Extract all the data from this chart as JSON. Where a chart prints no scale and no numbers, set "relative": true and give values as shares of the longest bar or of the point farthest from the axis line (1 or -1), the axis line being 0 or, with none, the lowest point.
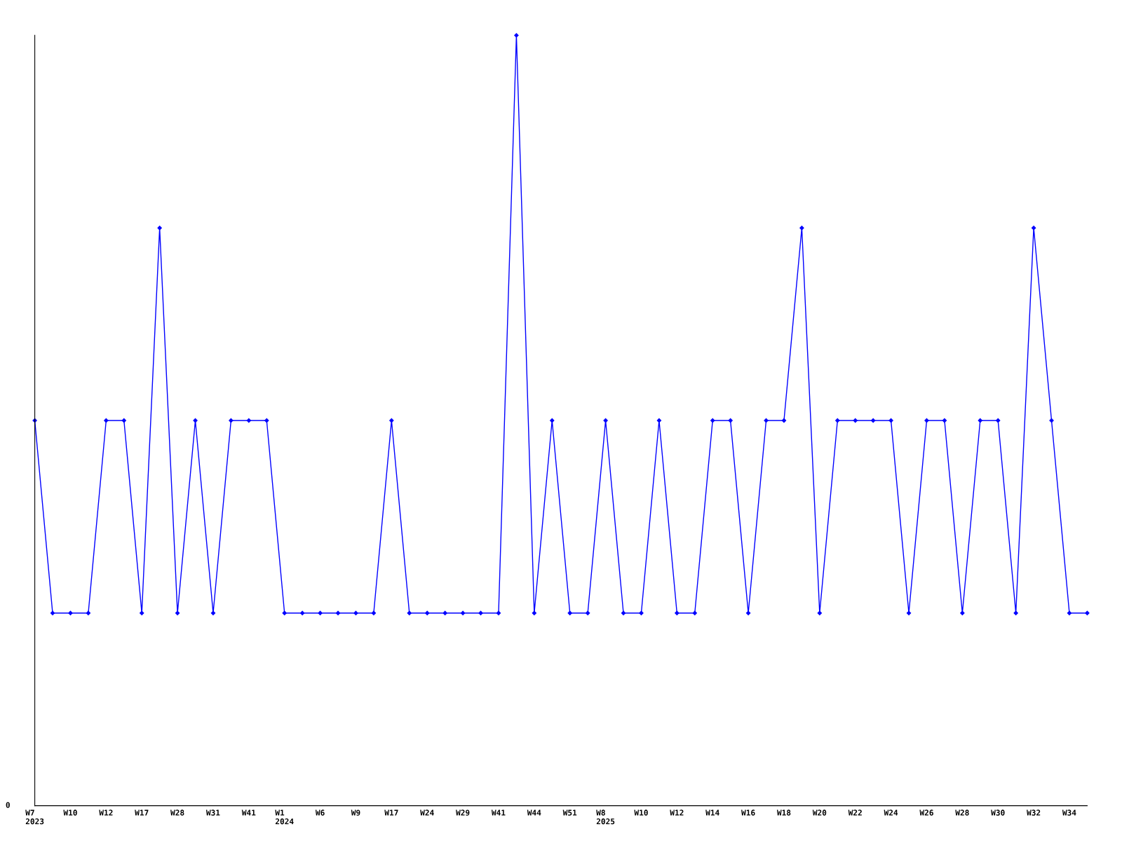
{
  "chart_data": {
    "type": "line",
    "relative": true,
    "tick_labels": "x",
    "marker": "diamond",
    "line_style": "solid",
    "grid": false,
    "categories": [
      "W7\n2023",
      null,
      "W10",
      null,
      "W12",
      null,
      "W17",
      null,
      "W28",
      null,
      "W31",
      null,
      "W41",
      null,
      "W1\n2024",
      null,
      "W6",
      null,
      "W9",
      null,
      "W17",
      null,
      "W24",
      null,
      "W29",
      null,
      "W41",
      null,
      "W44",
      null,
      "W51",
      null,
      "W8\n2025",
      null,
      "W10",
      null,
      "W12",
      null,
      "W14",
      null,
      "W16",
      null,
      "W18",
      null,
      "W20",
      null,
      "W22",
      null,
      "W24",
      null,
      "W26",
      null,
      "W28",
      null,
      "W30",
      null,
      "W32",
      null,
      "W34",
      null
    ],
    "series": [
      {
        "color": "#0000ff",
        "values": [
          0.5,
          0.25,
          0.25,
          0.25,
          0.5,
          0.5,
          0.25,
          0.75,
          0.25,
          0.5,
          0.25,
          0.5,
          0.5,
          0.5,
          0.25,
          0.25,
          0.25,
          0.25,
          0.25,
          0.25,
          0.5,
          0.25,
          0.25,
          0.25,
          0.25,
          0.25,
          0.25,
          1,
          0.25,
          0.5,
          0.25,
          0.25,
          0.5,
          0.25,
          0.25,
          0.5,
          0.25,
          0.25,
          0.5,
          0.5,
          0.25,
          0.5,
          0.5,
          0.75,
          0.25,
          0.5,
          0.5,
          0.5,
          0.5,
          0.25,
          0.5,
          0.5,
          0.25,
          0.5,
          0.5,
          0.25,
          0.75,
          0.5,
          0.25,
          0.25
        ]
      }
    ],
    "annotations": [
      "0"
    ]
  }
}
